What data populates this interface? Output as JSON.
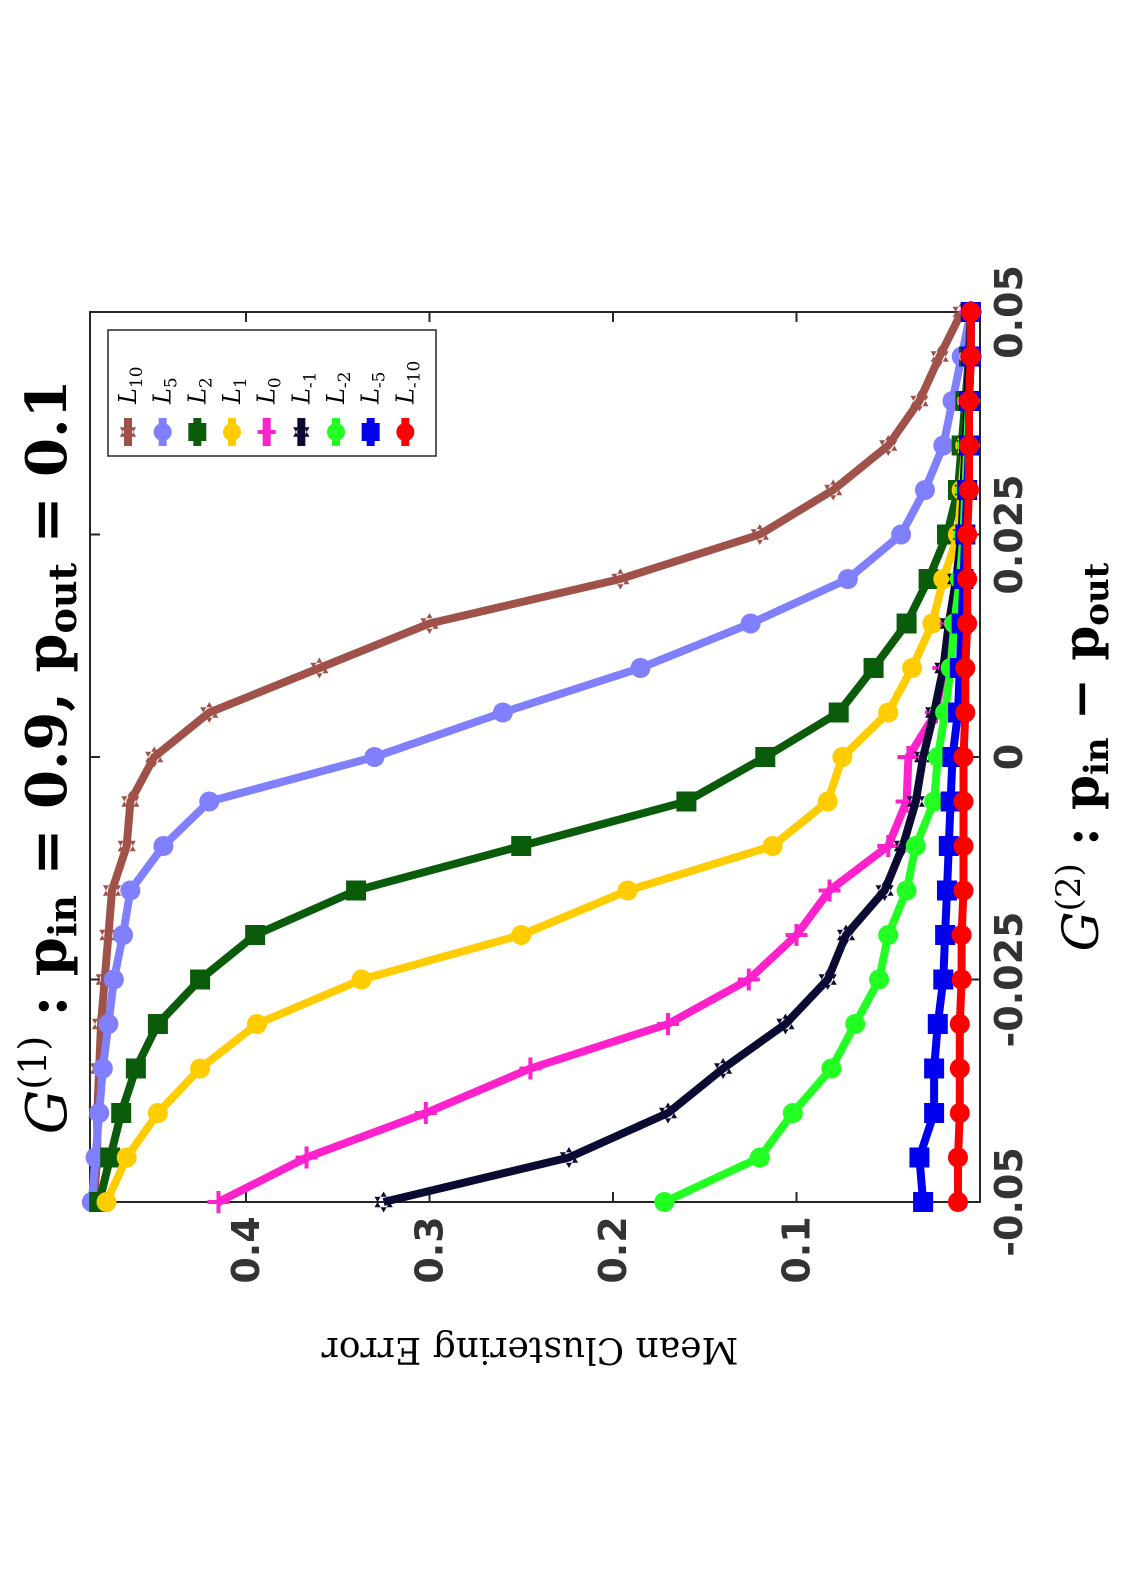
{
  "chart_data": {
    "type": "line",
    "title_left": "G",
    "title_sup": "(1)",
    "title_rest": " : p",
    "title_sub_in": "in",
    "title_mid": " = 0.9,  p",
    "title_sub_out": "out",
    "title_end": " = 0.1",
    "xlabel_left": "G",
    "xlabel_sup": "(2)",
    "xlabel_rest": " : p",
    "xlabel_sub_in": "in",
    "xlabel_minus": " − p",
    "xlabel_sub_out": "out",
    "ylabel": "Mean Clustering Error",
    "x": [
      -0.05,
      -0.045,
      -0.04,
      -0.035,
      -0.03,
      -0.025,
      -0.02,
      -0.015,
      -0.01,
      -0.005,
      0,
      0.005,
      0.01,
      0.015,
      0.02,
      0.025,
      0.03,
      0.035,
      0.04,
      0.045,
      0.05
    ],
    "xlim": [
      -0.05,
      0.05
    ],
    "ylim": [
      0,
      0.485
    ],
    "xticks": [
      -0.05,
      -0.025,
      0,
      0.025,
      0.05
    ],
    "xtick_labels": [
      "-0.05",
      "-0.025",
      "0",
      "0.025",
      "0.05"
    ],
    "yticks": [
      0.1,
      0.2,
      0.3,
      0.4
    ],
    "ytick_labels": [
      "0.1",
      "0.2",
      "0.3",
      "0.4"
    ],
    "legend_position": "top-left",
    "series": [
      {
        "name": "L",
        "sub": "10",
        "color": "#a0524a",
        "marker": "hexagram",
        "values": [
          0.483,
          0.481,
          0.481,
          0.48,
          0.479,
          0.477,
          0.475,
          0.473,
          0.465,
          0.463,
          0.45,
          0.42,
          0.36,
          0.3,
          0.196,
          0.12,
          0.08,
          0.05,
          0.033,
          0.022,
          0.01
        ]
      },
      {
        "name": "L",
        "sub": "5",
        "color": "#8080ff",
        "marker": "dot",
        "values": [
          0.484,
          0.482,
          0.48,
          0.478,
          0.475,
          0.472,
          0.467,
          0.463,
          0.445,
          0.42,
          0.33,
          0.26,
          0.185,
          0.125,
          0.072,
          0.043,
          0.03,
          0.02,
          0.015,
          0.01,
          0.005
        ]
      },
      {
        "name": "L",
        "sub": "2",
        "color": "#0a5c0a",
        "marker": "square",
        "values": [
          0.48,
          0.474,
          0.468,
          0.46,
          0.448,
          0.425,
          0.395,
          0.34,
          0.25,
          0.16,
          0.117,
          0.077,
          0.058,
          0.04,
          0.028,
          0.018,
          0.012,
          0.01,
          0.008,
          0.006,
          0.005
        ]
      },
      {
        "name": "L",
        "sub": "1",
        "color": "#ffcc00",
        "marker": "dot",
        "values": [
          0.476,
          0.465,
          0.448,
          0.425,
          0.394,
          0.337,
          0.25,
          0.192,
          0.113,
          0.083,
          0.075,
          0.05,
          0.037,
          0.026,
          0.02,
          0.012,
          0.01,
          0.008,
          0.007,
          0.006,
          0.005
        ]
      },
      {
        "name": "L",
        "sub": "0",
        "color": "#ff22cc",
        "marker": "cross",
        "values": [
          0.415,
          0.367,
          0.302,
          0.245,
          0.17,
          0.126,
          0.1,
          0.082,
          0.05,
          0.04,
          0.039,
          0.024,
          0.02,
          0.016,
          0.01,
          0.008,
          0.007,
          0.006,
          0.006,
          0.005,
          0.005
        ]
      },
      {
        "name": "L",
        "sub": "-1",
        "color": "#0a0a33",
        "marker": "hexagram",
        "values": [
          0.325,
          0.224,
          0.17,
          0.14,
          0.106,
          0.083,
          0.073,
          0.052,
          0.042,
          0.035,
          0.031,
          0.025,
          0.02,
          0.017,
          0.013,
          0.01,
          0.009,
          0.008,
          0.007,
          0.006,
          0.005
        ]
      },
      {
        "name": "L",
        "sub": "-2",
        "color": "#22ff22",
        "marker": "dot",
        "values": [
          0.172,
          0.12,
          0.102,
          0.081,
          0.068,
          0.055,
          0.05,
          0.04,
          0.035,
          0.025,
          0.023,
          0.019,
          0.016,
          0.014,
          0.011,
          0.009,
          0.008,
          0.007,
          0.006,
          0.005,
          0.005
        ]
      },
      {
        "name": "L",
        "sub": "-5",
        "color": "#0000ee",
        "marker": "square",
        "values": [
          0.031,
          0.033,
          0.025,
          0.025,
          0.023,
          0.02,
          0.019,
          0.018,
          0.017,
          0.016,
          0.015,
          0.012,
          0.011,
          0.01,
          0.009,
          0.008,
          0.007,
          0.006,
          0.006,
          0.005,
          0.005
        ]
      },
      {
        "name": "L",
        "sub": "-10",
        "color": "#ff0000",
        "marker": "dot",
        "values": [
          0.012,
          0.012,
          0.011,
          0.011,
          0.011,
          0.01,
          0.01,
          0.009,
          0.009,
          0.009,
          0.009,
          0.008,
          0.008,
          0.007,
          0.007,
          0.007,
          0.006,
          0.006,
          0.006,
          0.005,
          0.005
        ]
      }
    ]
  }
}
